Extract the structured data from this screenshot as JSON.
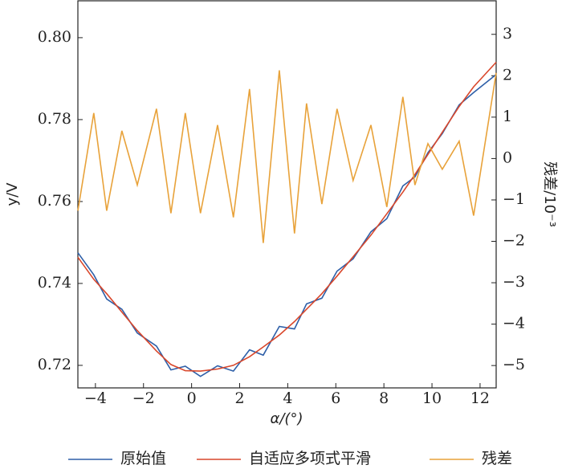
{
  "chart_data": {
    "type": "line",
    "x_label": "α/(°)",
    "y_label": "y/V",
    "y2_label": "残差/10⁻³",
    "x": [
      -4.73,
      -4.07,
      -3.53,
      -2.9,
      -2.26,
      -1.46,
      -0.86,
      -0.26,
      0.37,
      1.08,
      1.74,
      2.41,
      2.98,
      3.65,
      4.28,
      4.78,
      5.42,
      6.05,
      6.72,
      7.46,
      8.12,
      8.79,
      9.29,
      9.83,
      10.43,
      11.13,
      11.73,
      12.67
    ],
    "series": [
      {
        "name": "原始值",
        "color": "#2e5fa8",
        "values": [
          0.7475,
          0.7421,
          0.7362,
          0.7337,
          0.7279,
          0.7247,
          0.7189,
          0.7198,
          0.7173,
          0.7199,
          0.7186,
          0.7238,
          0.7225,
          0.7295,
          0.7289,
          0.735,
          0.7364,
          0.743,
          0.746,
          0.7526,
          0.7558,
          0.7638,
          0.766,
          0.7719,
          0.7766,
          0.7836,
          0.7866,
          0.791
        ]
      },
      {
        "name": "自适应多项式平滑",
        "color": "#d9472b",
        "values": [
          0.7464,
          0.741,
          0.7375,
          0.733,
          0.7285,
          0.7235,
          0.7202,
          0.7187,
          0.7186,
          0.7191,
          0.72,
          0.7221,
          0.7245,
          0.7274,
          0.7307,
          0.7337,
          0.7375,
          0.7418,
          0.7465,
          0.7518,
          0.757,
          0.7623,
          0.7666,
          0.7715,
          0.7769,
          0.7832,
          0.788,
          0.794
        ]
      },
      {
        "name": "残差",
        "color": "#e8a23a",
        "axis": "y2",
        "values": [
          -1.26,
          1.1,
          -1.26,
          0.67,
          -0.64,
          1.2,
          -1.32,
          1.1,
          -1.32,
          0.81,
          -1.42,
          1.68,
          -2.04,
          2.13,
          -1.81,
          1.33,
          -1.1,
          1.2,
          -0.53,
          0.81,
          -1.17,
          1.49,
          -0.64,
          0.36,
          -0.26,
          0.42,
          -1.38,
          2.07
        ]
      }
    ],
    "xlim": [
      -4.73,
      12.67
    ],
    "xticks": [
      {
        "value": -4,
        "label": "−4"
      },
      {
        "value": -2,
        "label": "−2"
      },
      0,
      2,
      4,
      6,
      8,
      10,
      12
    ],
    "ylim": [
      0.7145,
      0.809
    ],
    "yticks": [
      0.72,
      0.74,
      0.76,
      0.78,
      {
        "value": 0.8,
        "label": "0.80"
      }
    ],
    "y2lim": [
      -5.54,
      3.81
    ],
    "y2ticks": [
      {
        "value": -5,
        "label": "−5"
      },
      {
        "value": -4,
        "label": "−4"
      },
      {
        "value": -3,
        "label": "−3"
      },
      {
        "value": -2,
        "label": "−2"
      },
      {
        "value": -1,
        "label": "−1"
      },
      0,
      1,
      2,
      3
    ],
    "legend": "bottom"
  }
}
